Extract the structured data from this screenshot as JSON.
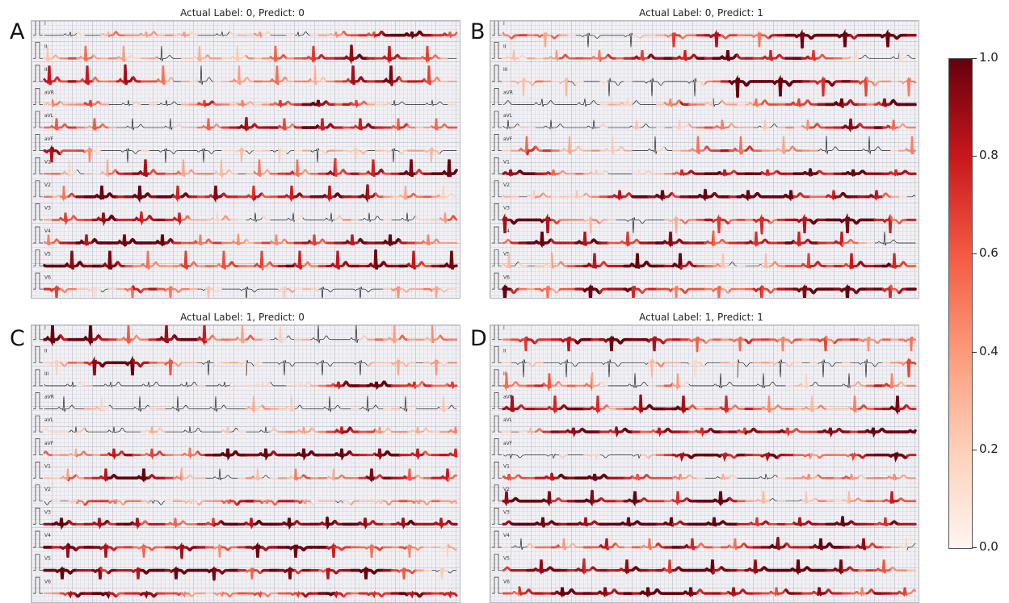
{
  "panels": [
    {
      "letter": "A",
      "title": "Actual Label: 0, Predict: 0",
      "seed": 11
    },
    {
      "letter": "B",
      "title": "Actual Label: 0, Predict: 1",
      "seed": 27
    },
    {
      "letter": "C",
      "title": "Actual Label: 1, Predict: 0",
      "seed": 43
    },
    {
      "letter": "D",
      "title": "Actual Label: 1, Predict: 1",
      "seed": 59
    }
  ],
  "leads": [
    "I",
    "II",
    "III",
    "aVR",
    "aVL",
    "aVF",
    "V1",
    "V2",
    "V3",
    "V4",
    "V5",
    "V6"
  ],
  "colorbar": {
    "ticks": [
      "1.0",
      "0.8",
      "0.6",
      "0.4",
      "0.2",
      "0.0"
    ],
    "colors": [
      "#fff5f0",
      "#fdd0b9",
      "#fc9a7a",
      "#f45a42",
      "#c8171c",
      "#67000d"
    ]
  }
}
